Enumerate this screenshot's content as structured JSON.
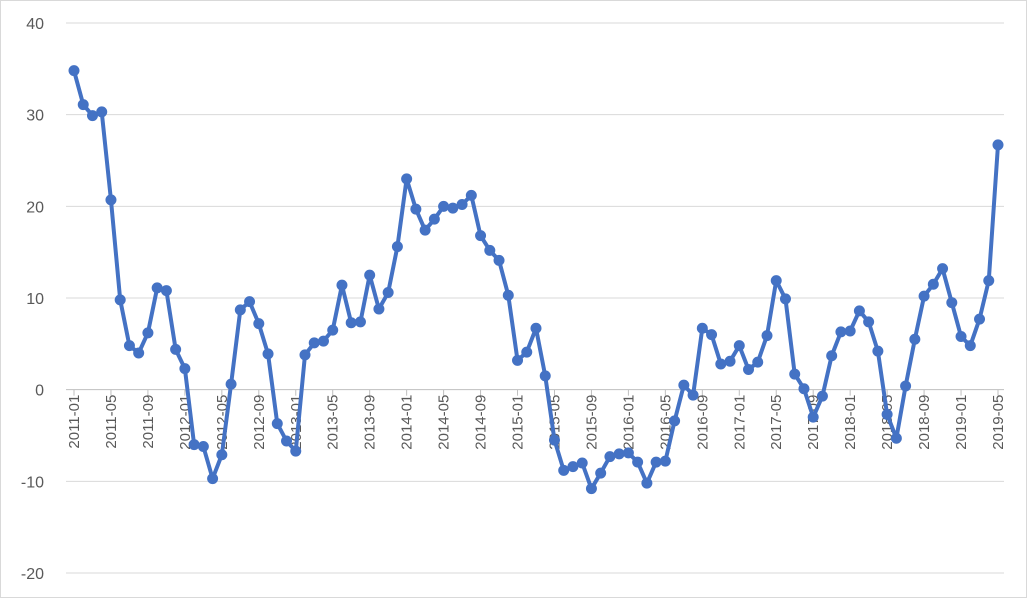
{
  "chart_data": {
    "type": "line",
    "title": "",
    "xlabel": "",
    "ylabel": "",
    "ylim": [
      -20,
      40
    ],
    "yticks": [
      -20,
      -10,
      0,
      10,
      20,
      30,
      40
    ],
    "grid": true,
    "legend": "none",
    "line_color": "#4472C4",
    "x_tick_labels": [
      "2011-01",
      "2011-05",
      "2011-09",
      "2012-01",
      "2012-05",
      "2012-09",
      "2013-01",
      "2013-05",
      "2013-09",
      "2014-01",
      "2014-05",
      "2014-09",
      "2015-01",
      "2015-05",
      "2015-09",
      "2016-01",
      "2016-05",
      "2016-09",
      "2017-01",
      "2017-05",
      "2017-09",
      "2018-01",
      "2018-05",
      "2018-09",
      "2019-01",
      "2019-05"
    ],
    "x_start": "2011-01",
    "series": [
      {
        "values": [
          34.8,
          31.1,
          29.9,
          30.3,
          20.7,
          9.8,
          4.8,
          4.0,
          6.2,
          11.1,
          10.8,
          4.4,
          2.3,
          -6.0,
          -6.2,
          -9.7,
          -7.1,
          0.6,
          8.7,
          9.6,
          7.2,
          3.9,
          -3.7,
          -5.6,
          -6.7,
          3.8,
          5.1,
          5.3,
          6.5,
          11.4,
          7.3,
          7.4,
          12.5,
          8.8,
          10.6,
          15.6,
          23.0,
          19.7,
          17.4,
          18.6,
          20.0,
          19.8,
          20.2,
          21.2,
          16.8,
          15.2,
          14.1,
          10.3,
          3.2,
          4.1,
          6.7,
          1.5,
          -5.5,
          -8.8,
          -8.4,
          -8.0,
          -10.8,
          -9.1,
          -7.3,
          -7.0,
          -6.9,
          -7.9,
          -10.2,
          -7.9,
          -7.8,
          -3.4,
          0.5,
          -0.6,
          6.7,
          6.0,
          2.8,
          3.1,
          4.8,
          2.2,
          3.0,
          5.9,
          11.9,
          9.9,
          1.7,
          0.1,
          -3.0,
          -0.7,
          3.7,
          6.3,
          6.4,
          8.6,
          7.4,
          4.2,
          -2.7,
          -5.3,
          0.4,
          5.5,
          10.2,
          11.5,
          13.2,
          9.5,
          5.8,
          4.8,
          7.7,
          11.9,
          26.7
        ]
      }
    ]
  }
}
